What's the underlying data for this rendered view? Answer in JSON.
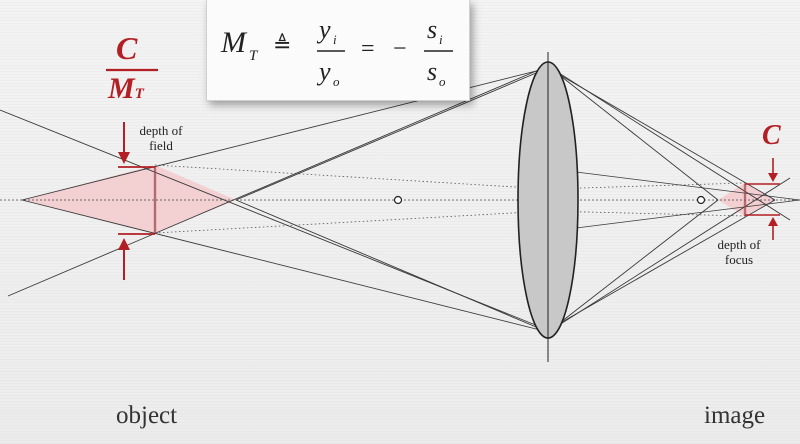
{
  "formula": {
    "lhs_symbol": "M",
    "lhs_subscript": "T",
    "defined_as": "≜",
    "frac1_num": "y",
    "frac1_num_sub": "i",
    "frac1_den": "y",
    "frac1_den_sub": "o",
    "equals": "=",
    "minus": "−",
    "frac2_num": "s",
    "frac2_num_sub": "i",
    "frac2_den": "s",
    "frac2_den_sub": "o"
  },
  "object_side": {
    "coc_numerator": "C",
    "coc_denominator": "M",
    "coc_denominator_sub": "T",
    "depth_label_line1": "depth of",
    "depth_label_line2": "field",
    "caption": "object"
  },
  "image_side": {
    "coc": "C",
    "depth_label_line1": "depth of",
    "depth_label_line2": "focus",
    "caption": "image"
  },
  "colors": {
    "accent_red": "#b21f24",
    "zone_fill": "#f4c9cc",
    "lens_fill": "#c8c8c8",
    "ray": "#3a3a3a"
  }
}
